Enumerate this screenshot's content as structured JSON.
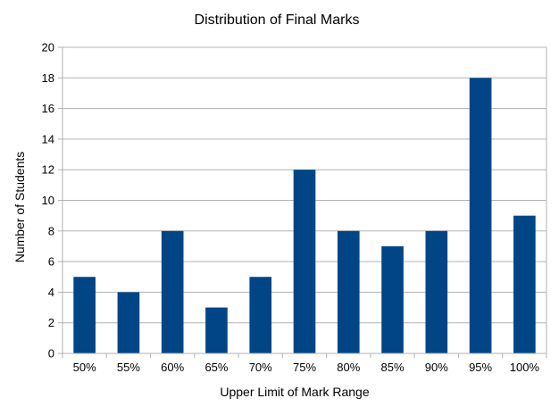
{
  "chart_data": {
    "type": "bar",
    "title": "Distribution of Final Marks",
    "xlabel": "Upper Limit of Mark Range",
    "ylabel": "Number of Students",
    "categories": [
      "50%",
      "55%",
      "60%",
      "65%",
      "70%",
      "75%",
      "80%",
      "85%",
      "90%",
      "95%",
      "100%"
    ],
    "values": [
      5,
      4,
      8,
      3,
      5,
      12,
      8,
      7,
      8,
      18,
      9
    ],
    "ylim": [
      0,
      20
    ],
    "yticks": [
      0,
      2,
      4,
      6,
      8,
      10,
      12,
      14,
      16,
      18,
      20
    ],
    "grid": "horizontal",
    "legend": "none",
    "colors": {
      "bar": "#004586",
      "grid": "#b3b3b3",
      "axis": "#b3b3b3"
    }
  }
}
